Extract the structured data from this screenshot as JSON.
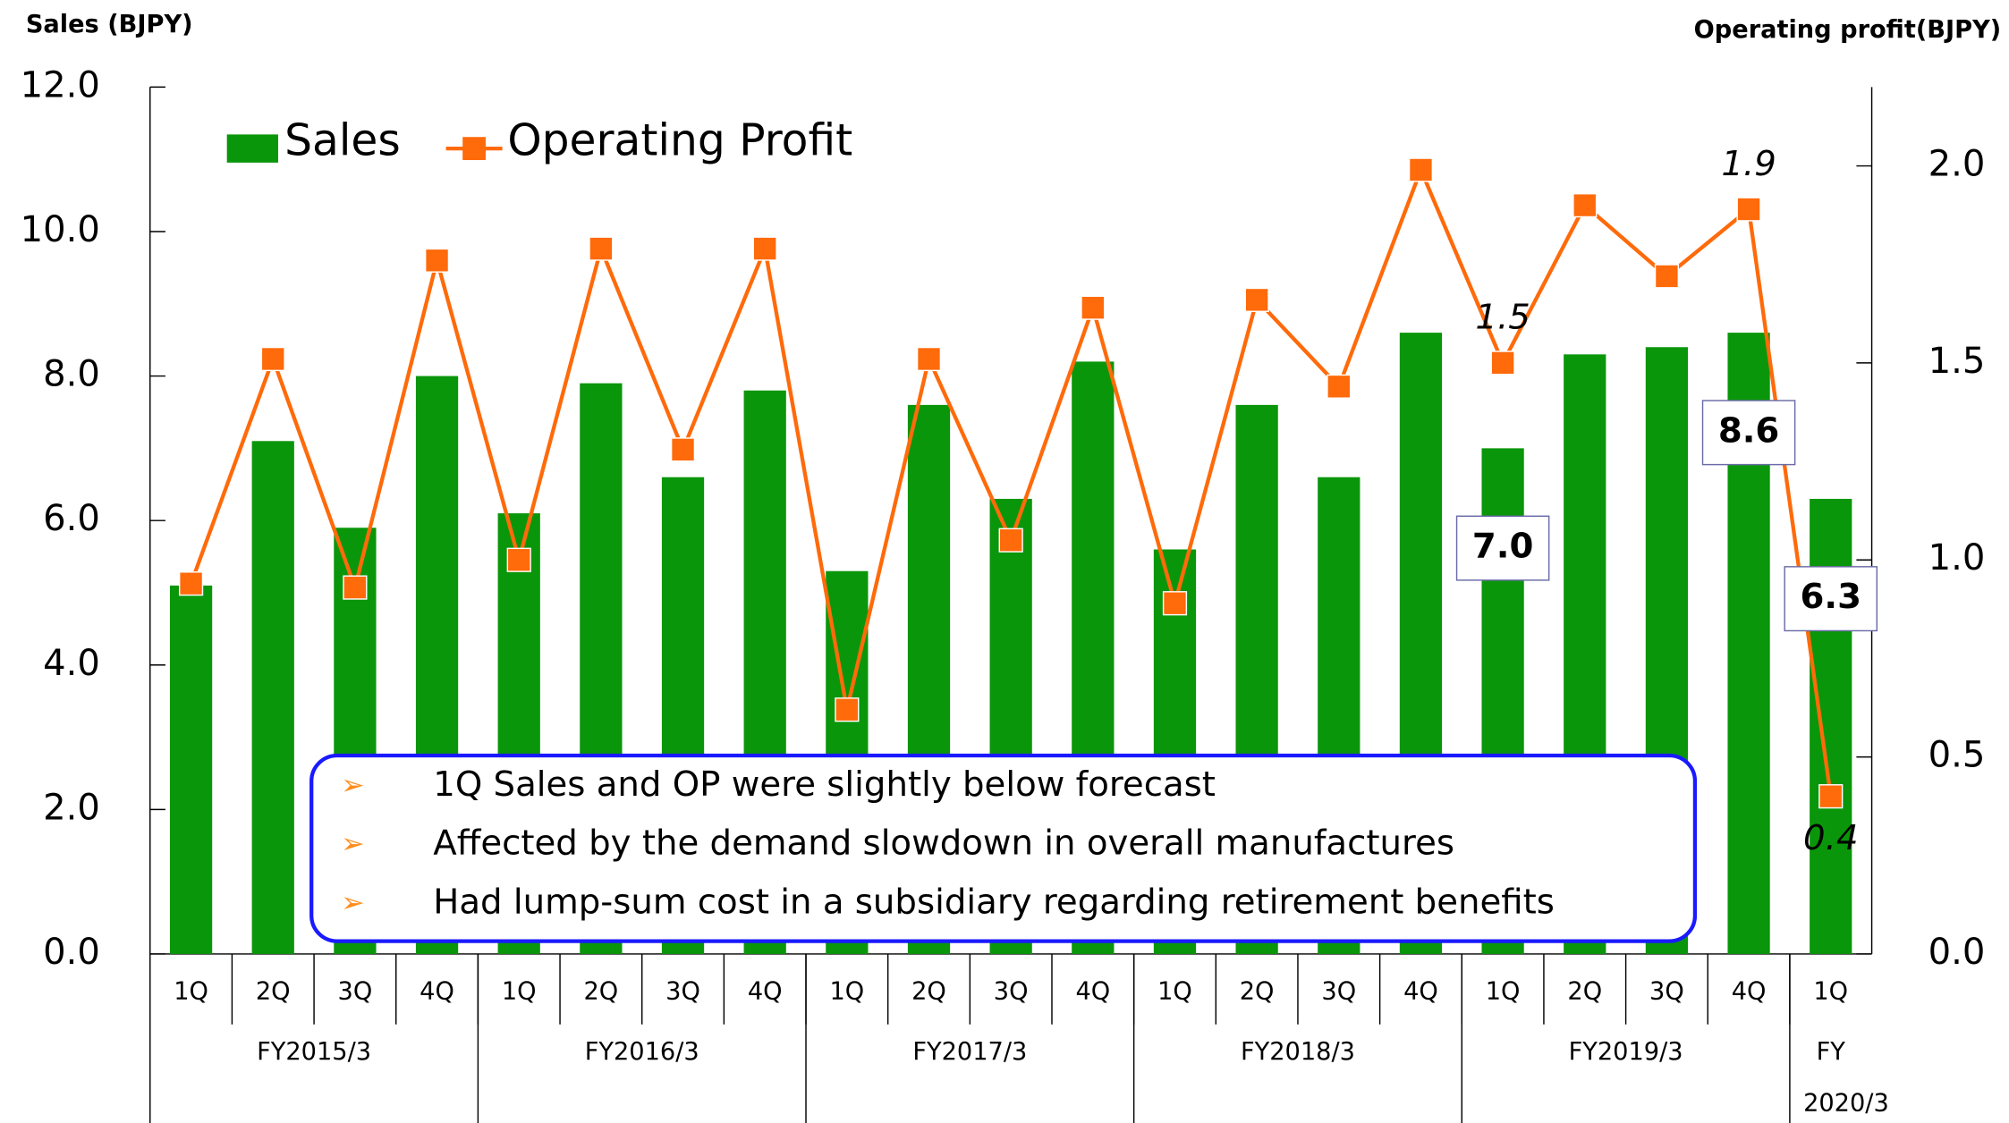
{
  "chart_data": {
    "type": "bar-line",
    "y_label": "Sales (BJPY)",
    "y2_label": "Operating profit(BJPY)",
    "categories": [
      "1Q",
      "2Q",
      "3Q",
      "4Q",
      "1Q",
      "2Q",
      "3Q",
      "4Q",
      "1Q",
      "2Q",
      "3Q",
      "4Q",
      "1Q",
      "2Q",
      "3Q",
      "4Q",
      "1Q",
      "2Q",
      "3Q",
      "4Q",
      "1Q"
    ],
    "groups": [
      {
        "label": "FY2015/3",
        "count": 4
      },
      {
        "label": "FY2016/3",
        "count": 4
      },
      {
        "label": "FY2017/3",
        "count": 4
      },
      {
        "label": "FY2018/3",
        "count": 4
      },
      {
        "label": "FY2019/3",
        "count": 4
      },
      {
        "label": "FY 2020/3",
        "count": 1
      }
    ],
    "series": [
      {
        "name": "Sales",
        "type": "bar",
        "color": "#0a960a",
        "values": [
          5.1,
          7.1,
          5.9,
          8.0,
          6.1,
          7.9,
          6.6,
          7.8,
          5.3,
          7.6,
          6.3,
          8.2,
          5.6,
          7.6,
          6.6,
          8.6,
          7.0,
          8.3,
          8.4,
          8.6,
          6.3
        ],
        "value_labels": [
          null,
          null,
          null,
          null,
          null,
          null,
          null,
          null,
          null,
          null,
          null,
          null,
          null,
          null,
          null,
          null,
          "7.0",
          null,
          null,
          "8.6",
          "6.3"
        ]
      },
      {
        "name": "Operating Profit",
        "type": "line",
        "axis": "y2",
        "color": "#ff6a0a",
        "values": [
          0.94,
          1.51,
          0.93,
          1.76,
          1.0,
          1.79,
          1.28,
          1.79,
          0.62,
          1.51,
          1.05,
          1.64,
          0.89,
          1.66,
          1.44,
          1.99,
          1.5,
          1.9,
          1.72,
          1.89,
          0.4
        ],
        "value_labels": [
          null,
          null,
          null,
          null,
          null,
          null,
          null,
          null,
          null,
          null,
          null,
          null,
          null,
          null,
          null,
          null,
          "1.5",
          null,
          null,
          "1.9",
          "0.4"
        ]
      }
    ],
    "ylim": [
      0,
      12
    ],
    "yticks": [
      {
        "value": 0,
        "label": "0.0"
      },
      {
        "value": 2,
        "label": "2.0"
      },
      {
        "value": 4,
        "label": "4.0"
      },
      {
        "value": 6,
        "label": "6.0"
      },
      {
        "value": 8,
        "label": "8.0"
      },
      {
        "value": 10,
        "label": "10.0"
      },
      {
        "value": 12,
        "label": "12.0"
      }
    ],
    "y2lim": [
      0,
      2.2
    ],
    "y2ticks": [
      {
        "value": 0,
        "label": "0.0"
      },
      {
        "value": 0.5,
        "label": "0.5"
      },
      {
        "value": 1,
        "label": "1.0"
      },
      {
        "value": 1.5,
        "label": "1.5"
      },
      {
        "value": 2,
        "label": "2.0"
      }
    ],
    "annotations": [
      "1Q Sales and OP were slightly below  forecast",
      "Affected by the demand slowdown in overall manufactures",
      "Had lump-sum cost in a subsidiary regarding retirement benefits"
    ]
  }
}
